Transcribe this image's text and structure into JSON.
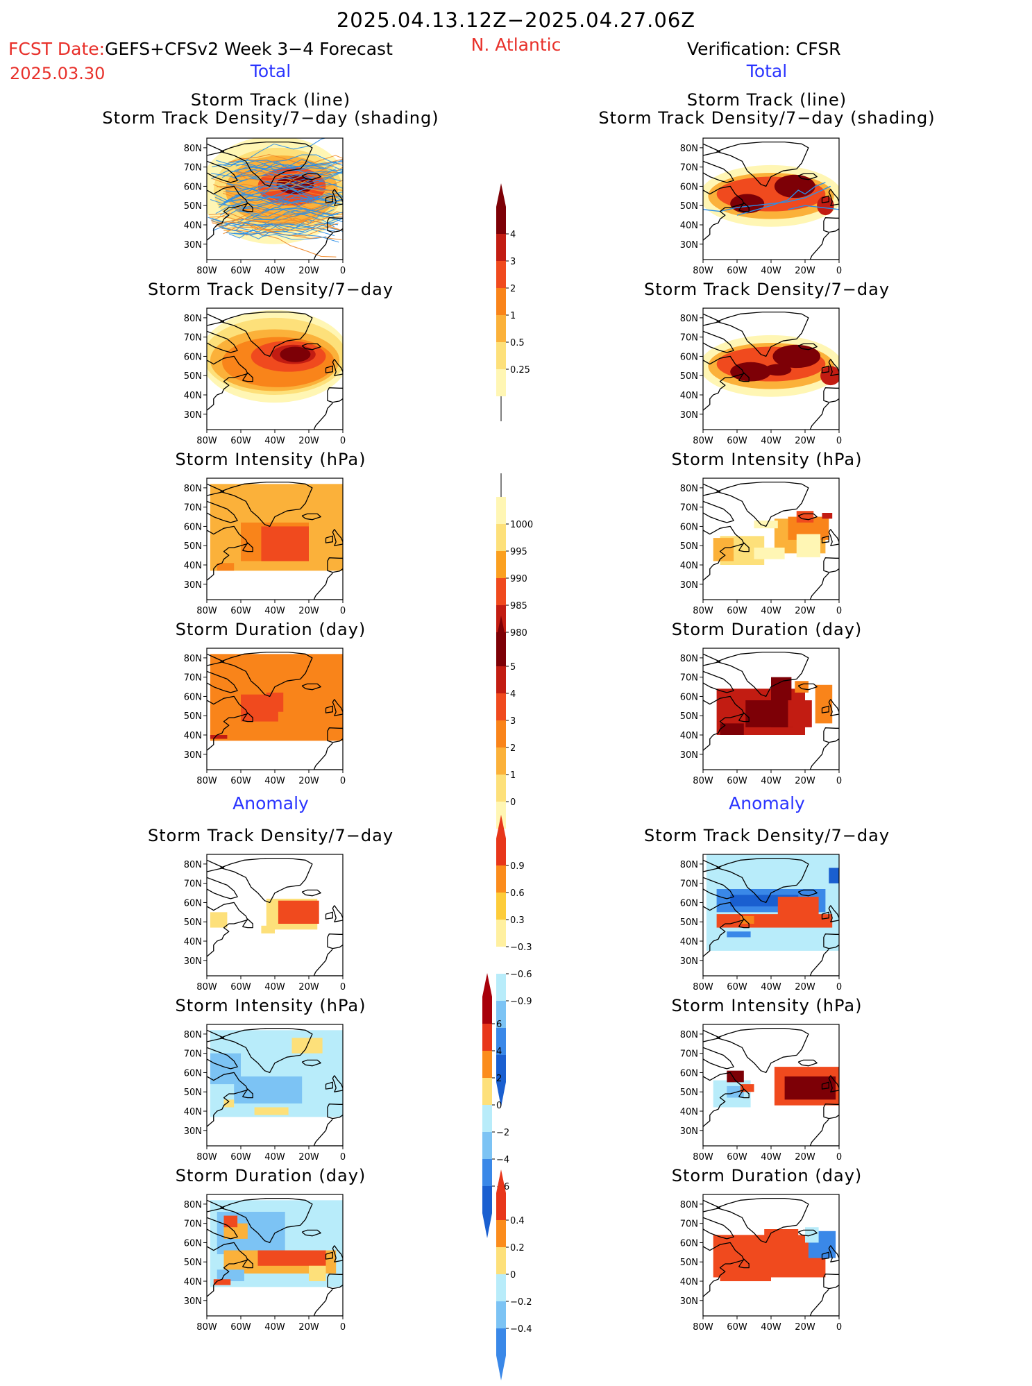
{
  "header": {
    "period": "2025.04.13.12Z−2025.04.27.06Z",
    "fcst_label": "FCST Date:",
    "model": "GEFS+CFSv2 Week 3−4 Forecast",
    "fcst_date": "2025.03.30",
    "region": "N. Atlantic",
    "verification": "Verification: CFSR"
  },
  "sections": {
    "total": "Total",
    "anomaly": "Anomaly"
  },
  "panel_titles": {
    "track_line": "Storm Track (line)",
    "track_density_shading": "Storm Track Density/7−day (shading)",
    "density": "Storm Track Density/7−day",
    "intensity": "Storm Intensity (hPa)",
    "duration": "Storm Duration (day)"
  },
  "axes": {
    "lat_labels": [
      "80N",
      "70N",
      "60N",
      "50N",
      "40N",
      "30N"
    ],
    "lon_labels": [
      "80W",
      "60W",
      "40W",
      "20W",
      "0"
    ]
  },
  "colorbars": {
    "density_total": {
      "labels": [
        "4",
        "3",
        "2",
        "1",
        "0.5",
        "0.25"
      ],
      "colors": [
        "#7d0006",
        "#c21c12",
        "#f04a1e",
        "#f9841a",
        "#fbb13a",
        "#fde07a",
        "#fff6b4"
      ]
    },
    "intensity_total": {
      "labels": [
        "1000",
        "995",
        "990",
        "985",
        "980"
      ],
      "colors": [
        "#fff6b4",
        "#fde07a",
        "#fba020",
        "#f04a1e",
        "#c21c12",
        "#7d0006"
      ]
    },
    "duration_total": {
      "labels": [
        "5",
        "4",
        "3",
        "2",
        "1",
        "0"
      ],
      "colors": [
        "#7d0006",
        "#c21c12",
        "#f04a1e",
        "#f9841a",
        "#fbb13a",
        "#fde07a",
        "#fff6b4"
      ]
    },
    "density_anom": {
      "labels": [
        "0.9",
        "0.6",
        "0.3",
        "−0.3",
        "−0.6",
        "−0.9"
      ],
      "colors": [
        "#e8361a",
        "#fb8c1c",
        "#fdcc3a",
        "#fff0a0",
        "#ffffff",
        "#b8ecfa",
        "#7cc3f4",
        "#3a88e8",
        "#1a5fd0"
      ]
    },
    "intensity_anom": {
      "labels": [
        "6",
        "4",
        "2",
        "0",
        "−2",
        "−4",
        "−6"
      ],
      "colors": [
        "#a8000a",
        "#e8361a",
        "#fb8c1c",
        "#fde07a",
        "#b8ecfa",
        "#7cc3f4",
        "#3a88e8",
        "#1a5fd0"
      ]
    },
    "duration_anom": {
      "labels": [
        "0.4",
        "0.2",
        "0",
        "−0.2",
        "−0.4"
      ],
      "colors": [
        "#e8361a",
        "#fb8c1c",
        "#fde07a",
        "#b8ecfa",
        "#7cc3f4",
        "#3a88e8"
      ]
    }
  },
  "map_colors": {
    "c1": "#fff6b4",
    "c2": "#fde07a",
    "c3": "#fbb13a",
    "c4": "#f9841a",
    "c5": "#f04a1e",
    "c6": "#c21c12",
    "c7": "#7d0006",
    "b1": "#b8ecfa",
    "b2": "#7cc3f4",
    "b3": "#3a88e8",
    "b4": "#1a5fd0",
    "track_blue": "#2a8ee8",
    "track_orange": "#f08a2a"
  }
}
